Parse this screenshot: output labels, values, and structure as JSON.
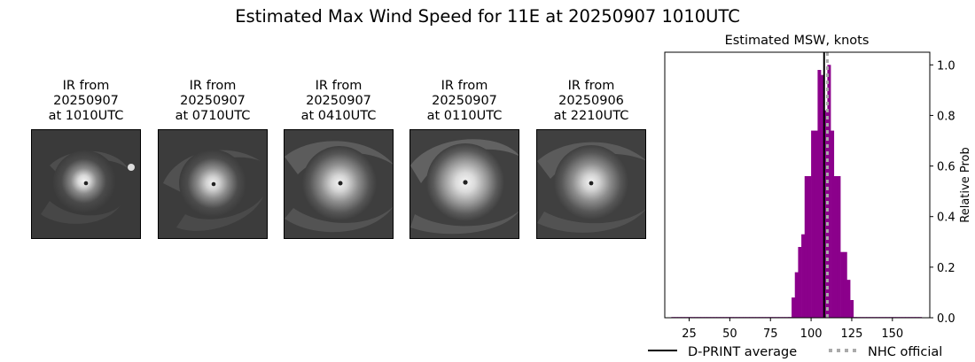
{
  "figure": {
    "title": "Estimated Max Wind Speed for 11E at 20250907 1010UTC"
  },
  "ir_images": [
    {
      "line1": "IR from",
      "line2": "20250907",
      "line3": "at 1010UTC",
      "image": "satellite-ir-hurricane"
    },
    {
      "line1": "IR from",
      "line2": "20250907",
      "line3": "at 0710UTC",
      "image": "satellite-ir-hurricane"
    },
    {
      "line1": "IR from",
      "line2": "20250907",
      "line3": "at 0410UTC",
      "image": "satellite-ir-hurricane"
    },
    {
      "line1": "IR from",
      "line2": "20250907",
      "line3": "at 0110UTC",
      "image": "satellite-ir-hurricane"
    },
    {
      "line1": "IR from",
      "line2": "20250906",
      "line3": "at 2210UTC",
      "image": "satellite-ir-hurricane"
    }
  ],
  "chart_data": {
    "type": "bar",
    "title": "Estimated MSW, knots",
    "xlabel": "",
    "ylabel": "Relative Prob",
    "xlim": [
      10,
      173
    ],
    "ylim": [
      0,
      1.05
    ],
    "xticks": [
      25,
      50,
      75,
      100,
      125,
      150
    ],
    "yticks": [
      0.0,
      0.2,
      0.4,
      0.6,
      0.8,
      1.0
    ],
    "bar_color": "#8b008b",
    "bin_width": 2,
    "bins": [
      {
        "x": 15,
        "value": 0.0
      },
      {
        "x": 17,
        "value": 0.0
      },
      {
        "x": 19,
        "value": 0.0
      },
      {
        "x": 21,
        "value": 0.0
      },
      {
        "x": 23,
        "value": 0.0
      },
      {
        "x": 25,
        "value": 0.0
      },
      {
        "x": 27,
        "value": 0.0
      },
      {
        "x": 29,
        "value": 0.0
      },
      {
        "x": 31,
        "value": 0.0
      },
      {
        "x": 33,
        "value": 0.0
      },
      {
        "x": 35,
        "value": 0.0
      },
      {
        "x": 37,
        "value": 0.0
      },
      {
        "x": 39,
        "value": 0.0
      },
      {
        "x": 41,
        "value": 0.0
      },
      {
        "x": 43,
        "value": 0.0
      },
      {
        "x": 45,
        "value": 0.0
      },
      {
        "x": 47,
        "value": 0.0
      },
      {
        "x": 49,
        "value": 0.0
      },
      {
        "x": 51,
        "value": 0.0
      },
      {
        "x": 53,
        "value": 0.0
      },
      {
        "x": 55,
        "value": 0.0
      },
      {
        "x": 57,
        "value": 0.0
      },
      {
        "x": 59,
        "value": 0.0
      },
      {
        "x": 61,
        "value": 0.0
      },
      {
        "x": 63,
        "value": 0.0
      },
      {
        "x": 65,
        "value": 0.0
      },
      {
        "x": 67,
        "value": 0.0
      },
      {
        "x": 69,
        "value": 0.0
      },
      {
        "x": 71,
        "value": 0.0
      },
      {
        "x": 73,
        "value": 0.0
      },
      {
        "x": 75,
        "value": 0.0
      },
      {
        "x": 77,
        "value": 0.0
      },
      {
        "x": 79,
        "value": 0.0
      },
      {
        "x": 81,
        "value": 0.0
      },
      {
        "x": 83,
        "value": 0.0
      },
      {
        "x": 85,
        "value": 0.0
      },
      {
        "x": 87,
        "value": 0.003
      },
      {
        "x": 89,
        "value": 0.08
      },
      {
        "x": 91,
        "value": 0.18
      },
      {
        "x": 93,
        "value": 0.28
      },
      {
        "x": 95,
        "value": 0.33
      },
      {
        "x": 97,
        "value": 0.56
      },
      {
        "x": 99,
        "value": 0.56
      },
      {
        "x": 101,
        "value": 0.74
      },
      {
        "x": 103,
        "value": 0.74
      },
      {
        "x": 105,
        "value": 0.98
      },
      {
        "x": 107,
        "value": 0.96
      },
      {
        "x": 109,
        "value": 0.82
      },
      {
        "x": 111,
        "value": 1.0
      },
      {
        "x": 113,
        "value": 0.74
      },
      {
        "x": 115,
        "value": 0.56
      },
      {
        "x": 117,
        "value": 0.56
      },
      {
        "x": 119,
        "value": 0.26
      },
      {
        "x": 121,
        "value": 0.26
      },
      {
        "x": 123,
        "value": 0.15
      },
      {
        "x": 125,
        "value": 0.07
      },
      {
        "x": 127,
        "value": 0.003
      },
      {
        "x": 129,
        "value": 0.0
      },
      {
        "x": 131,
        "value": 0.0
      },
      {
        "x": 133,
        "value": 0.0
      },
      {
        "x": 135,
        "value": 0.0
      },
      {
        "x": 137,
        "value": 0.0
      },
      {
        "x": 139,
        "value": 0.0
      },
      {
        "x": 141,
        "value": 0.0
      },
      {
        "x": 143,
        "value": 0.0
      },
      {
        "x": 145,
        "value": 0.0
      },
      {
        "x": 147,
        "value": 0.0
      },
      {
        "x": 149,
        "value": 0.0
      },
      {
        "x": 151,
        "value": 0.0
      },
      {
        "x": 153,
        "value": 0.0
      },
      {
        "x": 155,
        "value": 0.0
      },
      {
        "x": 157,
        "value": 0.0
      },
      {
        "x": 159,
        "value": 0.0
      },
      {
        "x": 161,
        "value": 0.0
      },
      {
        "x": 163,
        "value": 0.0
      },
      {
        "x": 165,
        "value": 0.0
      },
      {
        "x": 167,
        "value": 0.0
      }
    ],
    "vlines": [
      {
        "name": "D-PRINT average",
        "x": 108,
        "color": "#000000",
        "style": "solid"
      },
      {
        "name": "NHC official",
        "x": 110,
        "color": "#aaaaaa",
        "style": "dotted"
      }
    ],
    "legend": {
      "placement": "bottom",
      "entries": [
        {
          "label": "D-PRINT average",
          "color": "#000000",
          "style": "solid"
        },
        {
          "label": "NHC official",
          "color": "#aaaaaa",
          "style": "dotted"
        }
      ]
    }
  }
}
